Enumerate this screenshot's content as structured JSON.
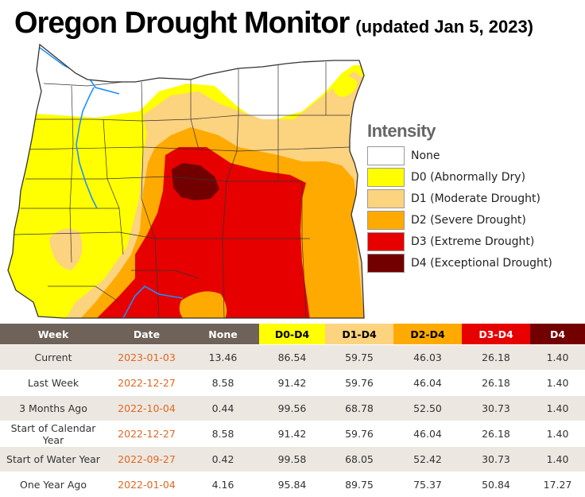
{
  "header": {
    "title": "Oregon Drought Monitor",
    "subtitle": "(updated Jan 5, 2023)"
  },
  "legend": {
    "title": "Intensity",
    "items": [
      {
        "label": "None",
        "color": "#ffffff"
      },
      {
        "label": "D0 (Abnormally Dry)",
        "color": "#ffff00"
      },
      {
        "label": "D1 (Moderate Drought)",
        "color": "#fcd37f"
      },
      {
        "label": "D2 (Severe Drought)",
        "color": "#ffaa00"
      },
      {
        "label": "D3 (Extreme Drought)",
        "color": "#e60000"
      },
      {
        "label": "D4 (Exceptional Drought)",
        "color": "#730000"
      }
    ]
  },
  "table": {
    "headers": [
      "Week",
      "Date",
      "None",
      "D0-D4",
      "D1-D4",
      "D2-D4",
      "D3-D4",
      "D4"
    ],
    "header_colors": [
      "#6e6259",
      "#6e6259",
      "#6e6259",
      "#ffff00",
      "#fcd37f",
      "#ffaa00",
      "#e60000",
      "#730000"
    ],
    "header_text_colors": [
      "#ffffff",
      "#ffffff",
      "#ffffff",
      "#000000",
      "#000000",
      "#000000",
      "#ffffff",
      "#ffffff"
    ],
    "rows": [
      [
        "Current",
        "2023-01-03",
        "13.46",
        "86.54",
        "59.75",
        "46.03",
        "26.18",
        "1.40"
      ],
      [
        "Last Week",
        "2022-12-27",
        "8.58",
        "91.42",
        "59.76",
        "46.04",
        "26.18",
        "1.40"
      ],
      [
        "3 Months Ago",
        "2022-10-04",
        "0.44",
        "99.56",
        "68.78",
        "52.50",
        "30.73",
        "1.40"
      ],
      [
        "Start of Calendar Year",
        "2022-12-27",
        "8.58",
        "91.42",
        "59.76",
        "46.04",
        "26.18",
        "1.40"
      ],
      [
        "Start of Water Year",
        "2022-09-27",
        "0.42",
        "99.58",
        "68.05",
        "52.42",
        "30.73",
        "1.40"
      ],
      [
        "One Year Ago",
        "2022-01-04",
        "4.16",
        "95.84",
        "89.75",
        "75.37",
        "50.84",
        "17.27"
      ]
    ]
  }
}
